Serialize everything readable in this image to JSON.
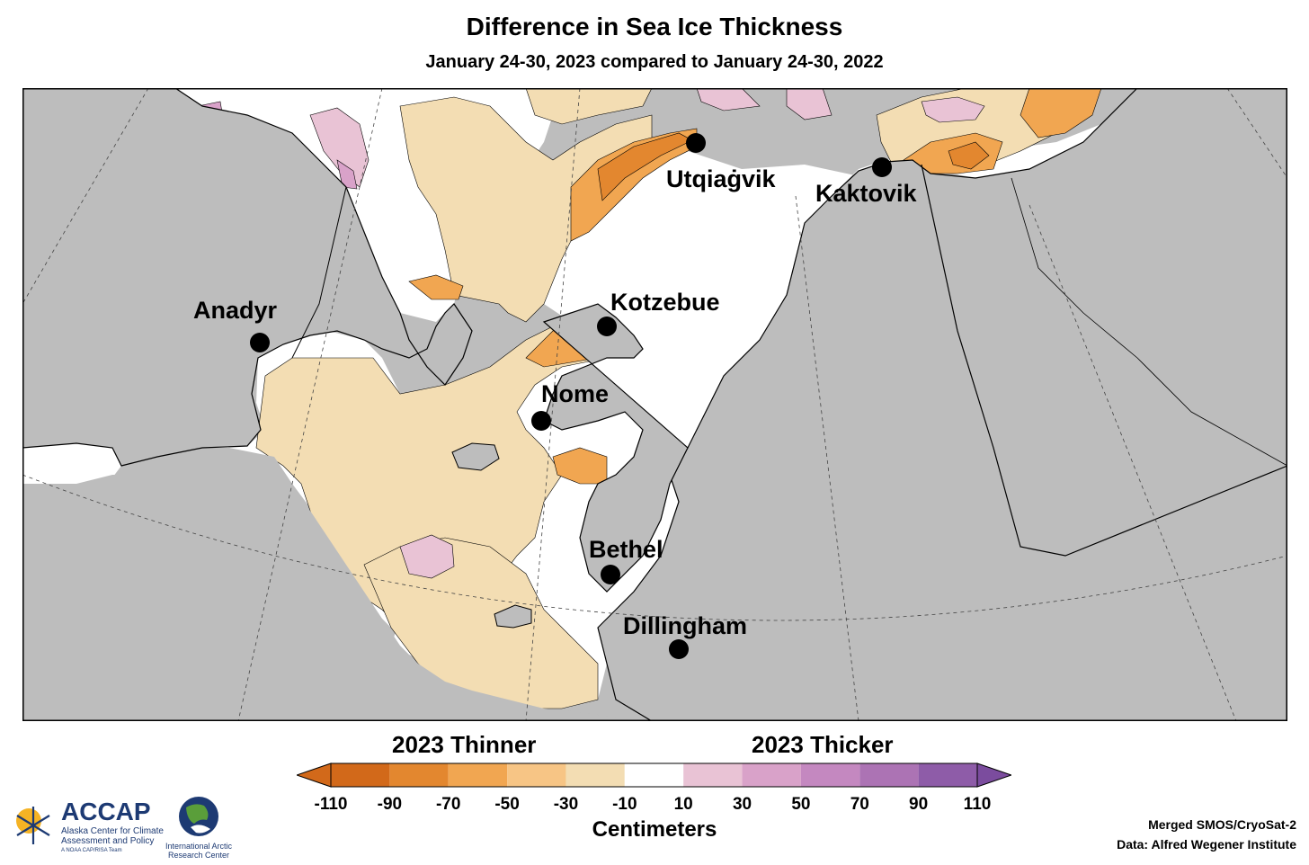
{
  "title": "Difference in Sea Ice Thickness",
  "subtitle": "January 24-30, 2023 compared to January 24-30, 2022",
  "cities": [
    {
      "name": "Utqiaġvik"
    },
    {
      "name": "Kaktovik"
    },
    {
      "name": "Kotzebue"
    },
    {
      "name": "Anadyr"
    },
    {
      "name": "Nome"
    },
    {
      "name": "Bethel"
    },
    {
      "name": "Dillingham"
    }
  ],
  "legend": {
    "thinner_label": "2023 Thinner",
    "thicker_label": "2023 Thicker",
    "units": "Centimeters",
    "ticks": [
      "-110",
      "-90",
      "-70",
      "-50",
      "-30",
      "-10",
      "10",
      "30",
      "50",
      "70",
      "90",
      "110"
    ],
    "colors": [
      "#d2691a",
      "#e3872f",
      "#f1a651",
      "#f7c585",
      "#f3ddb3",
      "#ffffff",
      "#e9c3d5",
      "#d9a2c9",
      "#c488c0",
      "#ac73b4",
      "#8e5ca8"
    ],
    "under_color": "#d2691a",
    "over_color": "#7b4c9e"
  },
  "colors": {
    "land": "#bdbdbd",
    "no_data": "#bdbdbd",
    "ice_no_change": "#ffffff"
  },
  "credits": {
    "line1": "Merged SMOS/CryoSat-2",
    "line2": "Data: Alfred Wegener Institute"
  },
  "logos": {
    "accap_word": "ACCAP",
    "accap_sub": "Alaska Center for Climate Assessment and Policy",
    "accap_tag": "A NOAA CAP/RISA Team",
    "iarc_text": "International Arctic Research Center"
  }
}
